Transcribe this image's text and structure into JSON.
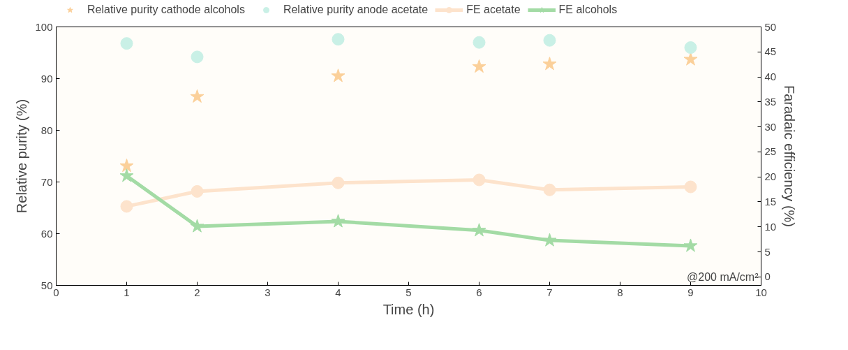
{
  "chart_data": {
    "type": "line",
    "xlabel": "Time (h)",
    "ylabel": "Relative purity (%)",
    "y2label": "Faradaic efficiency (%)",
    "x": [
      1,
      2,
      4,
      6,
      7,
      9
    ],
    "xlim": [
      0,
      10
    ],
    "xticks": [
      0,
      1,
      2,
      3,
      4,
      5,
      6,
      7,
      8,
      9,
      10
    ],
    "ylim": [
      50,
      100
    ],
    "yticks": [
      50,
      60,
      70,
      80,
      90,
      100
    ],
    "y2lim": [
      -1.7,
      50
    ],
    "y2ticks": [
      0,
      5,
      10,
      15,
      20,
      25,
      30,
      35,
      40,
      45,
      50
    ],
    "series": [
      {
        "name": "Relative purity cathode alcohols",
        "type": "scatter",
        "marker": "star",
        "color": "#fbd09a",
        "values": [
          73.1,
          86.5,
          90.5,
          92.3,
          92.8,
          93.7
        ]
      },
      {
        "name": "Relative purity anode acetate",
        "type": "scatter",
        "marker": "circle",
        "color": "#c9f0e6",
        "values": [
          96.8,
          94.2,
          97.6,
          97.0,
          97.4,
          96.0
        ]
      },
      {
        "name": "FE acetate",
        "marker": "circle",
        "color": "#fde3cc",
        "axis": "y2",
        "values": [
          14.1,
          17.1,
          18.8,
          19.4,
          17.4,
          18.0
        ]
      },
      {
        "name": "FE alcohols",
        "marker": "star",
        "color": "#a3dba5",
        "axis": "y2",
        "values": [
          20.2,
          10.1,
          11.1,
          9.3,
          7.3,
          6.2
        ]
      }
    ],
    "annotations": [
      "@200 mA/cm²"
    ],
    "legend": "top",
    "grid": false
  }
}
